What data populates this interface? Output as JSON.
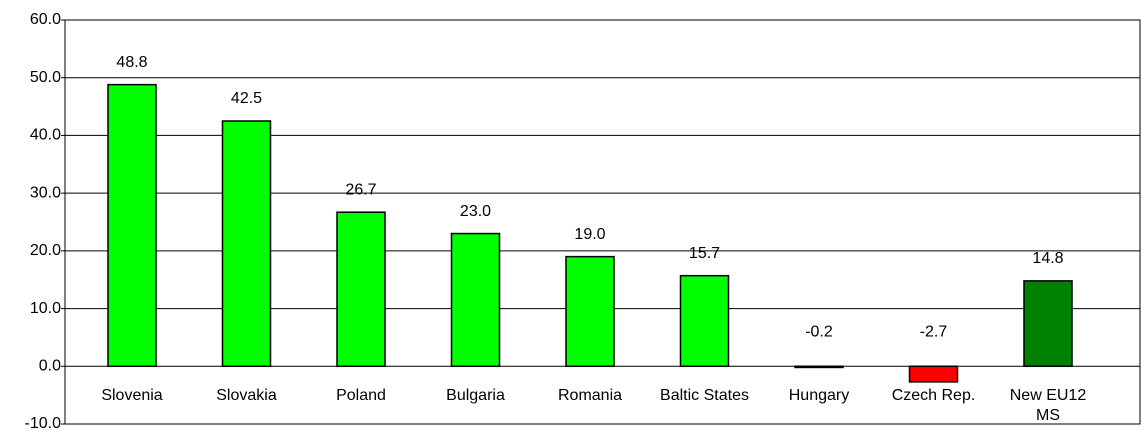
{
  "chart_data": {
    "type": "bar",
    "categories": [
      "Slovenia",
      "Slovakia",
      "Poland",
      "Bulgaria",
      "Romania",
      "Baltic States",
      "Hungary",
      "Czech Rep.",
      "New EU12 MS"
    ],
    "values": [
      48.8,
      42.5,
      26.7,
      23.0,
      19.0,
      15.7,
      -0.2,
      -2.7,
      14.8
    ],
    "value_labels": [
      "48.8",
      "42.5",
      "26.7",
      "23.0",
      "19.0",
      "15.7",
      "-0.2",
      "-2.7",
      "14.8"
    ],
    "colors": [
      "#00ff00",
      "#00ff00",
      "#00ff00",
      "#00ff00",
      "#00ff00",
      "#00ff00",
      "#ff0000",
      "#ff0000",
      "#008000"
    ],
    "ylim": [
      -10,
      60
    ],
    "yticks": [
      {
        "value": -10,
        "label": "-10.0"
      },
      {
        "value": 0,
        "label": "0.0"
      },
      {
        "value": 10,
        "label": "10.0"
      },
      {
        "value": 20,
        "label": "20.0"
      },
      {
        "value": 30,
        "label": "30.0"
      },
      {
        "value": 40,
        "label": "40.0"
      },
      {
        "value": 50,
        "label": "50.0"
      },
      {
        "value": 60,
        "label": "60.0"
      }
    ],
    "grid": true
  }
}
